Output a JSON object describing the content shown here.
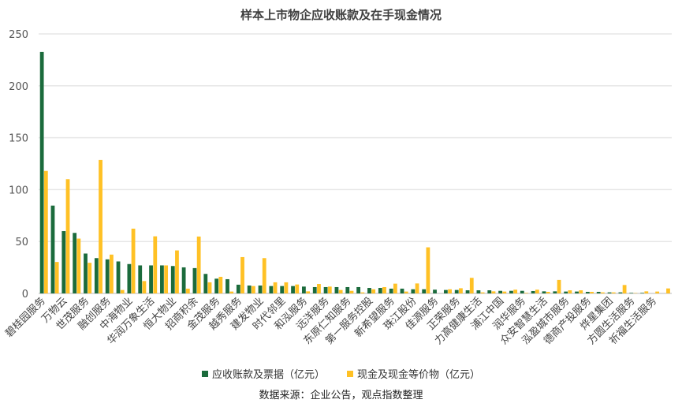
{
  "chart_data": {
    "type": "bar",
    "title": "样本上市物企应收账款及在手现金情况",
    "xlabel": "",
    "ylabel": "",
    "ylim": [
      0,
      250
    ],
    "yticks": [
      0,
      50,
      100,
      150,
      200,
      250
    ],
    "grid": true,
    "legend_position": "bottom",
    "categories": [
      "碧桂园服务",
      "",
      "万物云",
      "",
      "世茂服务",
      "",
      "融创服务",
      "",
      "中海物业",
      "",
      "华润万象生活",
      "",
      "恒大物业",
      "",
      "招商积余",
      "",
      "金茂服务",
      "",
      "越秀服务",
      "",
      "建发物业",
      "",
      "时代邻里",
      "",
      "和泓服务",
      "",
      "远洋服务",
      "",
      "东原仁知服务",
      "",
      "第一服务控股",
      "",
      "新希望服务",
      "",
      "珠江股份",
      "",
      "佳源服务",
      "",
      "正荣服务",
      "",
      "力高健康生活",
      "",
      "浦江中国",
      "",
      "润华服务",
      "",
      "众安智慧生活",
      "",
      "泓盈城市服务",
      "",
      "德商产投服务",
      "",
      "烨星集团",
      "",
      "方圆生活服务",
      "",
      "祈福生活服务",
      ""
    ],
    "series": [
      {
        "name": "应收账款及票据（亿元）",
        "color": "#1b6b3c",
        "values": [
          232.6,
          84.6,
          60,
          58.3,
          38.4,
          34,
          32.8,
          30.8,
          28.3,
          27,
          27,
          27,
          26.4,
          25.1,
          24.4,
          18.8,
          14.2,
          13.7,
          8.4,
          7.6,
          7.6,
          7.1,
          7.1,
          7.1,
          6.6,
          6.1,
          6.1,
          6.1,
          6.1,
          6.1,
          5.3,
          5.3,
          4.6,
          4.6,
          4,
          4,
          3.6,
          3.3,
          3.3,
          3,
          3,
          3,
          2.5,
          2.5,
          2.5,
          2.3,
          2,
          2,
          1.8,
          1.8,
          1.5,
          1.5,
          1,
          1,
          0.5,
          0.5,
          0,
          0
        ]
      },
      {
        "name": "现金及现金等价物（亿元）",
        "color": "#ffc125",
        "values": [
          118,
          30.3,
          110,
          52.8,
          29.5,
          128.5,
          37.4,
          3.3,
          62.4,
          11.9,
          55,
          27,
          41.4,
          4.6,
          54.8,
          10.7,
          16,
          1.8,
          35,
          7.1,
          34,
          10.7,
          10.7,
          8.6,
          2,
          9.1,
          6.6,
          3.3,
          2.5,
          1,
          4,
          6.1,
          9.4,
          1.8,
          9.6,
          44.4,
          0,
          4,
          5,
          15,
          1,
          2,
          1.8,
          3.6,
          0.5,
          3.6,
          1.5,
          13,
          3,
          3,
          1.5,
          1,
          1,
          8.1,
          0.3,
          2,
          1.8,
          4.8
        ]
      }
    ],
    "source": "数据来源：企业公告，观点指数整理"
  }
}
